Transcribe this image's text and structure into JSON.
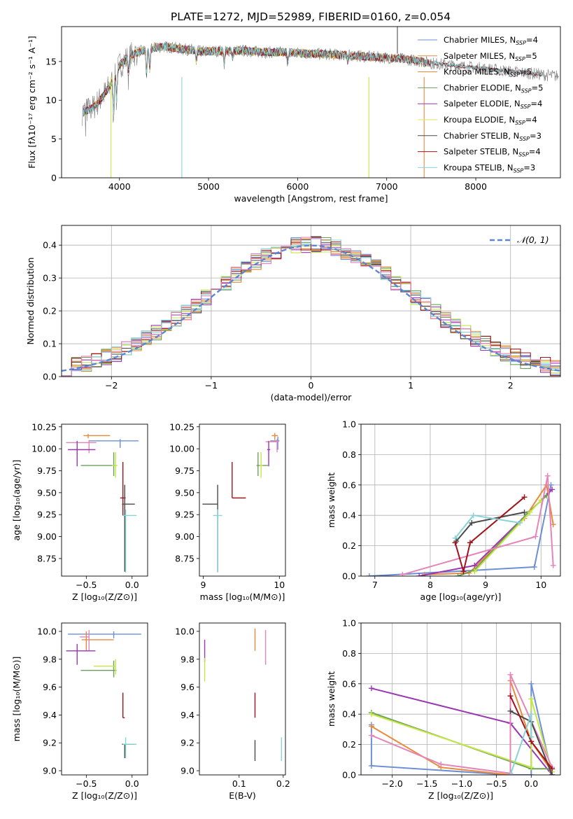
{
  "figure_title": "PLATE=1272, MJD=52989, FIBERID=0160, z=0.054",
  "colors": {
    "c0": "#6d8fd6",
    "c1": "#e98a3b",
    "c2": "#d38a32",
    "c3": "#6aa05c",
    "c4": "#9b36b3",
    "c5": "#e3e35a",
    "c6": "#4a4a4a",
    "c7": "#a0141c",
    "c8": "#86d4d8",
    "pink": "#e584b8",
    "lime": "#c6e647",
    "gray": "#7f7f7f",
    "dashed": "#5b86d1"
  },
  "chart_data": [
    {
      "id": "spectrum",
      "type": "line",
      "xlabel": "wavelength [Angstrom, rest frame]",
      "ylabel": "Flux [fλ10⁻¹⁷ erg cm⁻² s⁻¹ A⁻¹]",
      "xlim": [
        3350,
        8950
      ],
      "ylim": [
        0,
        19.5
      ],
      "xticks": [
        4000,
        5000,
        6000,
        7000,
        8000
      ],
      "yticks": [
        0,
        5,
        10,
        15
      ],
      "legend": [
        {
          "label": "Chabrier MILES, N_SSP=4",
          "color": "c0"
        },
        {
          "label": "Salpeter MILES, N_SSP=5",
          "color": "c1"
        },
        {
          "label": "Kroupa MILES, N_SSP=5",
          "color": "c2"
        },
        {
          "label": "Chabrier ELODIE, N_SSP=5",
          "color": "c3"
        },
        {
          "label": "Salpeter ELODIE, N_SSP=4",
          "color": "c4"
        },
        {
          "label": "Kroupa ELODIE, N_SSP=4",
          "color": "c5"
        },
        {
          "label": "Chabrier STELIB, N_SSP=3",
          "color": "c6"
        },
        {
          "label": "Salpeter STELIB, N_SSP=4",
          "color": "c7"
        },
        {
          "label": "Kroupa STELIB, N_SSP=3",
          "color": "c8"
        }
      ],
      "continuum": [
        [
          3600,
          8.5
        ],
        [
          3700,
          9.0
        ],
        [
          3800,
          10.3
        ],
        [
          3900,
          12.0
        ],
        [
          4000,
          14.5
        ],
        [
          4100,
          15.6
        ],
        [
          4200,
          16.2
        ],
        [
          4300,
          16.5
        ],
        [
          4400,
          16.8
        ],
        [
          4500,
          16.9
        ],
        [
          4600,
          16.8
        ],
        [
          4700,
          16.6
        ],
        [
          4800,
          16.5
        ],
        [
          4900,
          16.3
        ],
        [
          5000,
          16.3
        ],
        [
          5200,
          16.4
        ],
        [
          5400,
          16.4
        ],
        [
          5600,
          16.2
        ],
        [
          5800,
          16.2
        ],
        [
          6000,
          16.1
        ],
        [
          6200,
          16.0
        ],
        [
          6400,
          15.9
        ],
        [
          6600,
          15.8
        ],
        [
          6800,
          15.6
        ],
        [
          7000,
          15.5
        ],
        [
          7200,
          15.3
        ],
        [
          7400,
          15.0
        ],
        [
          7500,
          14.8
        ]
      ],
      "models_end": {
        "MILES": 7400,
        "ELODIE": 6800,
        "STELIB": 8750
      },
      "dips": [
        {
          "x": 3934,
          "depth": 5.0
        },
        {
          "x": 3968,
          "depth": 4.0
        },
        {
          "x": 4101,
          "depth": 2.5
        },
        {
          "x": 4304,
          "depth": 3.5
        },
        {
          "x": 4340,
          "depth": 2.8
        },
        {
          "x": 4861,
          "depth": 1.5
        },
        {
          "x": 5175,
          "depth": 1.8
        },
        {
          "x": 5270,
          "depth": 0.9
        },
        {
          "x": 5890,
          "depth": 1.4
        },
        {
          "x": 6563,
          "depth": 0.8
        }
      ]
    },
    {
      "id": "residuals",
      "type": "step",
      "xlabel": "(data-model)/error",
      "ylabel": "Normed distribution",
      "xlim": [
        -2.5,
        2.5
      ],
      "ylim": [
        0,
        0.46
      ],
      "xticks": [
        -2,
        -1,
        0,
        1,
        2
      ],
      "yticks": [
        0.0,
        0.1,
        0.2,
        0.3,
        0.4
      ],
      "legend": [
        {
          "label": "𝒩(0, 1)",
          "color": "dashed"
        }
      ],
      "bin_width": 0.1,
      "grid": true
    },
    {
      "id": "age_vs_Z",
      "type": "errorbar",
      "xlabel": "Z [log₁₀(Z/Z⊙)]",
      "ylabel": "age  [log₁₀(age/yr)]",
      "xlim": [
        -0.77,
        0.17
      ],
      "ylim": [
        8.55,
        10.28
      ],
      "xticks": [
        -0.5,
        0.0
      ],
      "yticks": [
        8.75,
        9.0,
        9.25,
        9.5,
        9.75,
        10.0,
        10.25
      ],
      "points": [
        {
          "x": -0.13,
          "y": 10.09,
          "xerr": [
            0.34,
            0.2
          ],
          "yerr": [
            0.08,
            0.02
          ],
          "color": "c0"
        },
        {
          "x": -0.48,
          "y": 10.15,
          "xerr": [
            0.05,
            0.24
          ],
          "yerr": [
            0.03,
            0.02
          ],
          "color": "c1"
        },
        {
          "x": -0.47,
          "y": 10.07,
          "xerr": [
            0.25,
            0.08
          ],
          "yerr": [
            0.12,
            0.03
          ],
          "color": "pink"
        },
        {
          "x": -0.6,
          "y": 9.99,
          "xerr": [
            0.1,
            0.2
          ],
          "yerr": [
            0.19,
            0.1
          ],
          "color": "c4"
        },
        {
          "x": -0.2,
          "y": 9.81,
          "xerr": [
            0.36,
            0.03
          ],
          "yerr": [
            0.12,
            0.15
          ],
          "color": "c3"
        },
        {
          "x": -0.18,
          "y": 9.81,
          "xerr": [
            0.04,
            0.02
          ],
          "yerr": [
            0.14,
            0.15
          ],
          "color": "lime"
        },
        {
          "x": -0.1,
          "y": 9.44,
          "xerr": [
            0.03,
            0.03
          ],
          "yerr": [
            0.2,
            0.41
          ],
          "color": "c7"
        },
        {
          "x": -0.08,
          "y": 9.37,
          "xerr": [
            0.03,
            0.11
          ],
          "yerr": [
            0.77,
            0.22
          ],
          "color": "c6"
        },
        {
          "x": -0.07,
          "y": 9.24,
          "xerr": [
            0.03,
            0.12
          ],
          "yerr": [
            0.65,
            0.07
          ],
          "color": "c8"
        }
      ]
    },
    {
      "id": "age_vs_mass",
      "type": "errorbar",
      "xlabel": "mass [log₁₀(M/M⊙)]",
      "ylabel": "",
      "xlim": [
        8.95,
        10.08
      ],
      "ylim": [
        8.55,
        10.28
      ],
      "xticks": [
        9,
        10
      ],
      "yticks": [
        8.75,
        9.0,
        9.25,
        9.5,
        9.75,
        10.0,
        10.25
      ],
      "points": [
        {
          "x": 9.98,
          "y": 10.09,
          "xerr": [
            0.1,
            0.02
          ],
          "yerr": [
            0.1,
            0.05
          ],
          "color": "c0"
        },
        {
          "x": 9.94,
          "y": 10.15,
          "xerr": [
            0.04,
            0.04
          ],
          "yerr": [
            0.05,
            0.03
          ],
          "color": "c1"
        },
        {
          "x": 9.97,
          "y": 10.08,
          "xerr": [
            0.15,
            0.02
          ],
          "yerr": [
            0.12,
            0.03
          ],
          "color": "pink"
        },
        {
          "x": 9.86,
          "y": 9.99,
          "xerr": [
            0.02,
            0.02
          ],
          "yerr": [
            0.19,
            0.1
          ],
          "color": "c4"
        },
        {
          "x": 9.72,
          "y": 9.81,
          "xerr": [
            0.02,
            0.13
          ],
          "yerr": [
            0.12,
            0.15
          ],
          "color": "c3"
        },
        {
          "x": 9.76,
          "y": 9.81,
          "xerr": [
            0.02,
            0.02
          ],
          "yerr": [
            0.14,
            0.15
          ],
          "color": "lime"
        },
        {
          "x": 9.38,
          "y": 9.44,
          "xerr": [
            0.0,
            0.18
          ],
          "yerr": [
            0.0,
            0.41
          ],
          "color": "c7"
        },
        {
          "x": 9.19,
          "y": 9.37,
          "xerr": [
            0.2,
            0.0
          ],
          "yerr": [
            0.77,
            0.22
          ],
          "color": "c6"
        },
        {
          "x": 9.19,
          "y": 9.24,
          "xerr": [
            0.06,
            0.06
          ],
          "yerr": [
            0.65,
            0.07
          ],
          "color": "c8"
        }
      ]
    },
    {
      "id": "weight_vs_age",
      "type": "line",
      "xlabel": "age  [log₁₀(age/yr)]",
      "ylabel": "mass weight",
      "xlim": [
        6.75,
        10.35
      ],
      "ylim": [
        0,
        1.0
      ],
      "xticks": [
        7,
        8,
        9,
        10
      ],
      "yticks": [
        0.0,
        0.2,
        0.4,
        0.6,
        0.8,
        1.0
      ],
      "grid": true,
      "series": [
        {
          "color": "c0",
          "x": [
            6.9,
            9.88,
            10.18
          ],
          "y": [
            0.0,
            0.06,
            0.6
          ]
        },
        {
          "color": "c1",
          "x": [
            7.9,
            8.7,
            9.7,
            10.1,
            10.22
          ],
          "y": [
            0.01,
            0.02,
            0.38,
            0.6,
            0.34
          ]
        },
        {
          "color": "c4",
          "x": [
            7.8,
            8.8,
            10.2
          ],
          "y": [
            0.0,
            0.07,
            0.57
          ]
        },
        {
          "color": "c3",
          "x": [
            8.5,
            8.8,
            9.75,
            10.1
          ],
          "y": [
            0.0,
            0.04,
            0.41,
            0.53
          ]
        },
        {
          "color": "lime",
          "x": [
            8.8,
            9.8,
            10.0
          ],
          "y": [
            0.03,
            0.42,
            0.5
          ]
        },
        {
          "color": "pink",
          "x": [
            7.5,
            9.9,
            10.12,
            10.22
          ],
          "y": [
            0.01,
            0.26,
            0.66,
            0.07
          ]
        },
        {
          "color": "c6",
          "x": [
            8.47,
            8.75,
            9.7
          ],
          "y": [
            0.23,
            0.35,
            0.42
          ]
        },
        {
          "color": "c7",
          "x": [
            8.45,
            8.6,
            8.72,
            9.7
          ],
          "y": [
            0.22,
            0.03,
            0.22,
            0.52
          ]
        },
        {
          "color": "c8",
          "x": [
            8.45,
            8.78,
            9.62
          ],
          "y": [
            0.25,
            0.4,
            0.35
          ]
        }
      ]
    },
    {
      "id": "mass_vs_Z",
      "type": "errorbar",
      "xlabel": "Z [log₁₀(Z/Z⊙)]",
      "ylabel": "mass [log₁₀(M/M⊙)]",
      "xlim": [
        -0.77,
        0.17
      ],
      "ylim": [
        8.97,
        10.06
      ],
      "xticks": [
        -0.5,
        0.0
      ],
      "yticks": [
        9.0,
        9.2,
        9.4,
        9.6,
        9.8,
        10.0
      ],
      "points": [
        {
          "x": -0.2,
          "y": 9.98,
          "xerr": [
            0.5,
            0.3
          ],
          "yerr": [
            0.03,
            0.02
          ],
          "color": "c0"
        },
        {
          "x": -0.5,
          "y": 9.94,
          "xerr": [
            0.05,
            0.3
          ],
          "yerr": [
            0.08,
            0.06
          ],
          "color": "c1"
        },
        {
          "x": -0.47,
          "y": 9.96,
          "xerr": [
            0.1,
            0.0
          ],
          "yerr": [
            0.1,
            0.05
          ],
          "color": "pink"
        },
        {
          "x": -0.6,
          "y": 9.86,
          "xerr": [
            0.12,
            0.2
          ],
          "yerr": [
            0.1,
            0.05
          ],
          "color": "c4"
        },
        {
          "x": -0.2,
          "y": 9.72,
          "xerr": [
            0.36,
            0.03
          ],
          "yerr": [
            0.05,
            0.07
          ],
          "color": "c3"
        },
        {
          "x": -0.18,
          "y": 9.75,
          "xerr": [
            0.24,
            0.0
          ],
          "yerr": [
            0.06,
            0.05
          ],
          "color": "lime"
        },
        {
          "x": -0.1,
          "y": 9.38,
          "xerr": [
            0.0,
            0.02
          ],
          "yerr": [
            0.0,
            0.18
          ],
          "color": "c7"
        },
        {
          "x": -0.08,
          "y": 9.19,
          "xerr": [
            0.03,
            0.11
          ],
          "yerr": [
            0.1,
            0.0
          ],
          "color": "c6"
        },
        {
          "x": -0.07,
          "y": 9.19,
          "xerr": [
            0.03,
            0.12
          ],
          "yerr": [
            0.1,
            0.05
          ],
          "color": "c8"
        }
      ]
    },
    {
      "id": "mass_vs_EBV",
      "type": "errorbar",
      "xlabel": "E(B-V)",
      "ylabel": "",
      "xlim": [
        0.01,
        0.205
      ],
      "ylim": [
        8.97,
        10.06
      ],
      "xticks": [
        0.1,
        0.2
      ],
      "yticks": [
        9.0,
        9.2,
        9.4,
        9.6,
        9.8,
        10.0
      ],
      "points": [
        {
          "x": 0.022,
          "y": 9.86,
          "xerr": [
            0,
            0
          ],
          "yerr": [
            0.08,
            0.08
          ],
          "color": "c4"
        },
        {
          "x": 0.022,
          "y": 9.75,
          "xerr": [
            0,
            0
          ],
          "yerr": [
            0.11,
            0.06
          ],
          "color": "lime"
        },
        {
          "x": 0.136,
          "y": 9.94,
          "xerr": [
            0,
            0
          ],
          "yerr": [
            0.08,
            0.08
          ],
          "color": "c1"
        },
        {
          "x": 0.16,
          "y": 9.96,
          "xerr": [
            0,
            0
          ],
          "yerr": [
            0.2,
            0.05
          ],
          "color": "pink"
        },
        {
          "x": 0.136,
          "y": 9.38,
          "xerr": [
            0,
            0
          ],
          "yerr": [
            0.0,
            0.18
          ],
          "color": "c7"
        },
        {
          "x": 0.136,
          "y": 9.15,
          "xerr": [
            0,
            0
          ],
          "yerr": [
            0.08,
            0.07
          ],
          "color": "c6"
        },
        {
          "x": 0.196,
          "y": 9.16,
          "xerr": [
            0,
            0
          ],
          "yerr": [
            0.09,
            0.08
          ],
          "color": "c8"
        }
      ]
    },
    {
      "id": "weight_vs_Z",
      "type": "line",
      "xlabel": "Z [log₁₀(Z/Z⊙)]",
      "ylabel": "mass weight",
      "xlim": [
        -2.45,
        0.42
      ],
      "ylim": [
        0,
        1.0
      ],
      "xticks": [
        -2.0,
        -1.5,
        -1.0,
        -0.5,
        0.0
      ],
      "yticks": [
        0.0,
        0.2,
        0.4,
        0.6,
        0.8,
        1.0
      ],
      "grid": true,
      "series": [
        {
          "color": "c0",
          "x": [
            -2.3,
            -2.3,
            -0.3,
            0.0,
            0.0,
            0.3
          ],
          "y": [
            0.33,
            0.06,
            0.0,
            0.0,
            0.6,
            0.0
          ]
        },
        {
          "color": "c1",
          "x": [
            -2.3,
            -1.3,
            -0.3,
            -0.3,
            0.0,
            0.3
          ],
          "y": [
            0.32,
            0.05,
            0.0,
            0.62,
            0.22,
            0.02
          ]
        },
        {
          "color": "c4",
          "x": [
            -2.3,
            -0.3,
            0.3
          ],
          "y": [
            0.57,
            0.34,
            0.0
          ]
        },
        {
          "color": "c3",
          "x": [
            -2.3,
            0.0,
            0.3
          ],
          "y": [
            0.41,
            0.04,
            0.04
          ]
        },
        {
          "color": "lime",
          "x": [
            -2.3,
            0.0,
            0.0,
            0.3
          ],
          "y": [
            0.4,
            0.05,
            0.5,
            0.02
          ]
        },
        {
          "color": "pink",
          "x": [
            -2.3,
            -1.3,
            -0.3,
            -0.3,
            0.3
          ],
          "y": [
            0.26,
            0.07,
            0.01,
            0.66,
            0.05
          ]
        },
        {
          "color": "c6",
          "x": [
            -0.3,
            0.0,
            0.3
          ],
          "y": [
            0.42,
            0.35,
            0.0
          ]
        },
        {
          "color": "c7",
          "x": [
            -0.3,
            0.0,
            0.3
          ],
          "y": [
            0.52,
            0.22,
            0.04
          ]
        },
        {
          "color": "c8",
          "x": [
            -0.3,
            0.0,
            0.0
          ],
          "y": [
            0.0,
            0.4,
            0.25
          ]
        }
      ]
    }
  ]
}
